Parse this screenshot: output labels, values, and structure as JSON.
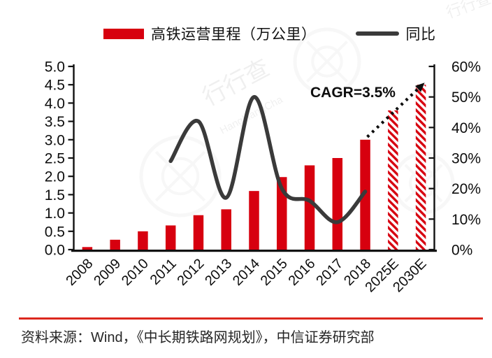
{
  "legend": {
    "bar_label": "高铁运营里程（万公里）",
    "line_label": "同比"
  },
  "footer": {
    "source_text": "资料来源：Wind，《中长期铁路网规划》，中信证券研究部"
  },
  "watermark": {
    "brand_text": "行行查",
    "brand_subtext": "HangHangCha"
  },
  "colors": {
    "bar_red": "#D7000F",
    "line_dark": "#3A3A3A",
    "divider_red": "#DC281E",
    "axis_black": "#111111"
  },
  "chart_data": {
    "type": "bar",
    "subtype": "bar+line combo, dual axis",
    "categories": [
      "2008",
      "2009",
      "2010",
      "2011",
      "2012",
      "2013",
      "2014",
      "2015",
      "2016",
      "2017",
      "2018",
      "2025E",
      "2030E"
    ],
    "bar_series": {
      "name": "高铁运营里程（万公里）",
      "axis": "left",
      "values": [
        0.07,
        0.27,
        0.5,
        0.66,
        0.94,
        1.1,
        1.6,
        1.98,
        2.3,
        2.5,
        3.0,
        3.8,
        4.5
      ],
      "estimated_hatched": [
        "2025E",
        "2030E"
      ]
    },
    "line_series": {
      "name": "同比",
      "axis": "right",
      "unit": "%",
      "values": [
        null,
        null,
        null,
        29,
        42,
        17,
        50,
        20,
        16,
        9,
        19,
        null,
        null
      ]
    },
    "left_axis": {
      "min": 0,
      "max": 5,
      "step": 0.5,
      "tick_labels": [
        "0.0",
        "0.5",
        "1.0",
        "1.5",
        "2.0",
        "2.5",
        "3.0",
        "3.5",
        "4.0",
        "4.5",
        "5.0"
      ]
    },
    "right_axis": {
      "min": 0,
      "max": 60,
      "step": 10,
      "tick_labels": [
        "0%",
        "10%",
        "20%",
        "30%",
        "40%",
        "50%",
        "60%"
      ]
    },
    "grid": "off",
    "legend_position": "top",
    "annotation": {
      "text": "CAGR=3.5%",
      "arrow_from_category": "2018",
      "arrow_to_category": "2030E",
      "arrow_style": "dotted"
    }
  }
}
